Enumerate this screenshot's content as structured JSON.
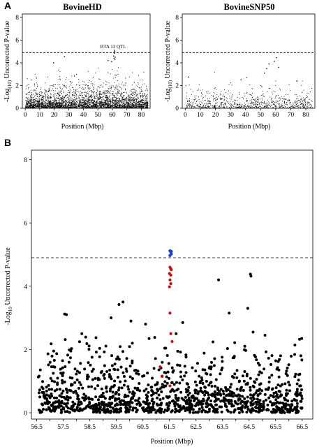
{
  "panels": {
    "A": {
      "letter": "A"
    },
    "B": {
      "letter": "B"
    }
  },
  "colors": {
    "points": "#000000",
    "significant": "#1f3fd6",
    "highlight": "#c41010",
    "threshold_line": "#000000"
  },
  "chart_data": [
    {
      "type": "scatter",
      "panel": "A",
      "title": "BovineHD",
      "xlabel": "Position (Mbp)",
      "ylabel": "-Log(10) Uncorrected P-value",
      "xlim": [
        -2,
        86
      ],
      "ylim": [
        0,
        8.3
      ],
      "xticks": [
        0,
        10,
        20,
        30,
        40,
        50,
        60,
        70,
        80
      ],
      "yticks": [
        0,
        2,
        4,
        6,
        8
      ],
      "threshold": 4.9,
      "annotation": {
        "text": "BTA 13 QTL",
        "x": 61.5,
        "y": 5.15
      },
      "density": "dense",
      "series": [
        {
          "values_description": "dense SNP associations, mostly between 0 and 3",
          "peak": [
            {
              "x": 61.4,
              "y": 5.1
            },
            {
              "x": 61.6,
              "y": 5.0
            },
            {
              "x": 61.5,
              "y": 4.85
            },
            {
              "x": 60.9,
              "y": 4.6
            },
            {
              "x": 62.0,
              "y": 4.5
            },
            {
              "x": 61.2,
              "y": 4.4
            },
            {
              "x": 61.8,
              "y": 4.3
            },
            {
              "x": 27.0,
              "y": 4.55
            },
            {
              "x": 19.5,
              "y": 4.0
            },
            {
              "x": 57.0,
              "y": 4.2
            },
            {
              "x": 59.5,
              "y": 4.1
            }
          ]
        }
      ]
    },
    {
      "type": "scatter",
      "panel": "A",
      "title": "BovineSNP50",
      "xlabel": "Position (Mbp)",
      "ylabel": "-Log(10) Uncorrected P-value",
      "xlim": [
        -2,
        86
      ],
      "ylim": [
        0,
        8.3
      ],
      "xticks": [
        0,
        10,
        20,
        30,
        40,
        50,
        60,
        70,
        80
      ],
      "yticks": [
        0,
        2,
        4,
        6,
        8
      ],
      "threshold": 4.9,
      "density": "sparse",
      "series": [
        {
          "values_description": "sparse SNP associations, mostly between 0 and 2",
          "peak": [
            {
              "x": 60.5,
              "y": 4.45
            },
            {
              "x": 59.0,
              "y": 4.1
            },
            {
              "x": 55.5,
              "y": 3.9
            },
            {
              "x": 54.0,
              "y": 3.5
            },
            {
              "x": 62.0,
              "y": 3.6
            },
            {
              "x": 52.5,
              "y": 3.1
            },
            {
              "x": 2.0,
              "y": 2.75
            },
            {
              "x": 37.0,
              "y": 2.5
            },
            {
              "x": 74.0,
              "y": 2.4
            }
          ]
        }
      ]
    },
    {
      "type": "scatter",
      "panel": "B",
      "title": "",
      "xlabel": "Position (Mbp)",
      "ylabel": "-Log10 Uncorrected P-value",
      "xlim": [
        56.3,
        66.9
      ],
      "ylim": [
        -0.2,
        8.3
      ],
      "xtick_labels": [
        "56.5",
        "57.5",
        "58.5",
        "59.5",
        "60.5",
        "61.5",
        "62.5",
        "63.5",
        "64.5",
        "65.5",
        "66.5"
      ],
      "xticks": [
        56.5,
        57.0,
        57.5,
        58.0,
        58.5,
        59.0,
        59.5,
        60.0,
        60.5,
        61.0,
        61.5,
        62.0,
        62.5,
        63.0,
        63.5,
        64.0,
        64.5,
        65.0,
        65.5,
        66.0,
        66.5
      ],
      "yticks": [
        0,
        2,
        4,
        6,
        8
      ],
      "threshold": 4.9,
      "series": [
        {
          "name": "",
          "color": "#1f3fd6",
          "points": [
            {
              "x": 61.52,
              "y": 5.12
            },
            {
              "x": 61.55,
              "y": 5.08
            },
            {
              "x": 61.57,
              "y": 5.02
            },
            {
              "x": 61.52,
              "y": 4.97
            },
            {
              "x": 61.57,
              "y": 5.1
            }
          ]
        },
        {
          "name": "",
          "color": "#c41010",
          "points": [
            {
              "x": 61.52,
              "y": 4.6
            },
            {
              "x": 61.55,
              "y": 4.55
            },
            {
              "x": 61.57,
              "y": 4.52
            },
            {
              "x": 61.5,
              "y": 4.4
            },
            {
              "x": 61.55,
              "y": 4.35
            },
            {
              "x": 61.52,
              "y": 4.2
            },
            {
              "x": 61.55,
              "y": 4.08
            },
            {
              "x": 61.5,
              "y": 3.98
            },
            {
              "x": 61.52,
              "y": 3.15
            },
            {
              "x": 61.55,
              "y": 2.5
            },
            {
              "x": 61.6,
              "y": 2.25
            },
            {
              "x": 61.15,
              "y": 1.45
            },
            {
              "x": 61.22,
              "y": 1.15
            },
            {
              "x": 61.52,
              "y": 0.85
            }
          ]
        },
        {
          "name": "",
          "color": "#000000",
          "notable_points": [
            {
              "x": 63.35,
              "y": 4.2
            },
            {
              "x": 64.55,
              "y": 4.38
            },
            {
              "x": 64.57,
              "y": 4.32
            },
            {
              "x": 64.45,
              "y": 3.3
            },
            {
              "x": 63.75,
              "y": 3.15
            },
            {
              "x": 59.75,
              "y": 3.5
            },
            {
              "x": 59.6,
              "y": 3.42
            },
            {
              "x": 57.55,
              "y": 3.12
            },
            {
              "x": 57.62,
              "y": 3.1
            },
            {
              "x": 59.3,
              "y": 3.0
            },
            {
              "x": 60.05,
              "y": 2.9
            },
            {
              "x": 60.6,
              "y": 2.8
            },
            {
              "x": 62.0,
              "y": 2.85
            },
            {
              "x": 64.65,
              "y": 2.55
            },
            {
              "x": 65.1,
              "y": 2.45
            },
            {
              "x": 58.2,
              "y": 2.5
            },
            {
              "x": 61.75,
              "y": 2.5
            }
          ]
        }
      ]
    }
  ]
}
